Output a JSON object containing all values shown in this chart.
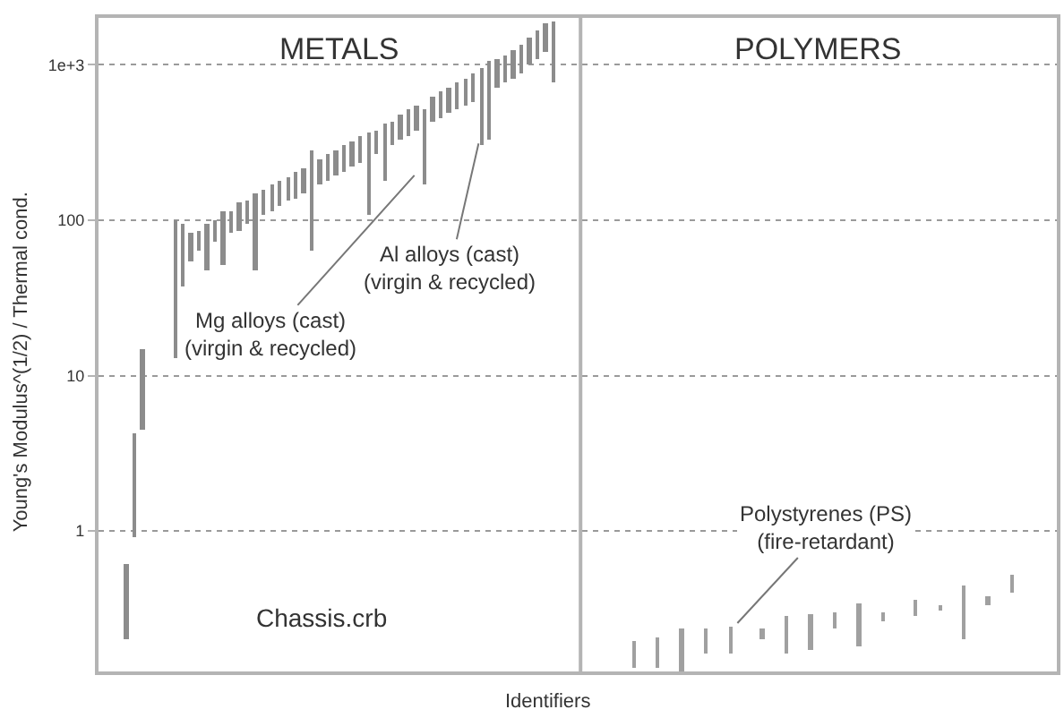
{
  "chart_data": {
    "type": "bar",
    "xlabel": "Identifiers",
    "ylabel": "Young's Modulus^(1/2) / Thermal cond.",
    "categories": [
      null,
      null,
      null,
      null,
      null,
      null,
      null,
      null,
      null,
      null,
      null,
      null,
      null,
      null,
      null,
      null,
      null,
      null,
      null,
      null,
      null,
      null,
      null,
      null,
      null,
      null,
      null,
      null,
      null,
      null,
      null,
      null,
      null,
      null,
      null,
      null,
      null,
      null,
      null,
      null,
      null,
      null,
      null,
      null,
      null,
      null,
      null,
      null,
      null,
      null,
      null,
      null,
      null,
      null,
      null,
      null,
      null,
      null,
      null,
      null,
      null,
      null,
      null,
      null,
      null,
      null,
      null,
      null,
      null,
      null,
      null,
      null,
      null,
      null,
      null,
      null,
      null,
      null,
      null,
      null,
      null,
      null,
      null,
      null,
      null,
      null,
      null,
      null,
      null,
      null,
      null,
      null,
      null,
      null,
      null,
      null,
      null,
      null,
      null,
      null,
      null,
      null,
      null,
      null,
      null,
      null,
      null,
      null,
      null,
      null,
      null,
      null,
      null,
      null,
      null,
      null,
      null,
      null,
      null
    ],
    "base": [
      null,
      null,
      null,
      0.2,
      0.91,
      4.5,
      null,
      null,
      null,
      12.9,
      37,
      55,
      63,
      48,
      72,
      51,
      82,
      86,
      94,
      48,
      107,
      113,
      122,
      132,
      139,
      147,
      63,
      172,
      181,
      196,
      207,
      224,
      236,
      107,
      270,
      181,
      308,
      333,
      352,
      381,
      172,
      434,
      458,
      496,
      523,
      551,
      581,
      308,
      333,
      718,
      778,
      820,
      888,
      1010,
      1100,
      1220,
      778,
      null,
      null,
      null,
      null,
      null,
      null,
      null,
      null,
      null,
      0.132,
      null,
      null,
      0.132,
      null,
      null,
      0.125,
      null,
      null,
      0.163,
      null,
      null,
      0.163,
      null,
      null,
      null,
      0.202,
      null,
      null,
      0.163,
      null,
      null,
      0.172,
      null,
      null,
      0.236,
      null,
      null,
      0.181,
      null,
      null,
      0.263,
      null,
      null,
      null,
      0.284,
      null,
      null,
      0.308,
      null,
      null,
      0.202,
      null,
      null,
      0.333,
      null,
      null,
      0.401,
      null,
      null,
      null,
      null,
      null
    ],
    "values": [
      null,
      null,
      null,
      0.41,
      3.3,
      10.2,
      null,
      null,
      null,
      86,
      57,
      27,
      23,
      46,
      29,
      62,
      31,
      43,
      38,
      99,
      48,
      55,
      59,
      59,
      68,
      71,
      221,
      77,
      82,
      88,
      101,
      101,
      116,
      264,
      111,
      242,
      126,
      150,
      171,
      170,
      351,
      195,
      223,
      222,
      255,
      269,
      307,
      653,
      736,
      379,
      382,
      433,
      467,
      500,
      575,
      640,
      1130,
      null,
      null,
      null,
      null,
      null,
      null,
      null,
      null,
      null,
      0.064,
      null,
      null,
      0.075,
      null,
      null,
      0.111,
      null,
      null,
      0.073,
      null,
      null,
      0.08,
      null,
      null,
      null,
      0.034,
      null,
      null,
      0.121,
      null,
      null,
      0.12,
      null,
      null,
      0.064,
      null,
      null,
      0.161,
      null,
      null,
      0.037,
      null,
      null,
      null,
      0.077,
      null,
      null,
      0.025,
      null,
      null,
      0.244,
      null,
      null,
      0.048,
      null,
      null,
      0.122,
      null,
      null,
      null,
      null,
      null
    ],
    "colors": [
      null,
      null,
      null,
      "#8c8c8c",
      "#8c8c8c",
      "#8c8c8c",
      null,
      null,
      null,
      "#8c8c8c",
      "#8c8c8c",
      "#8c8c8c",
      "#8c8c8c",
      "#8c8c8c",
      "#8c8c8c",
      "#8c8c8c",
      "#8c8c8c",
      "#8c8c8c",
      "#8c8c8c",
      "#8c8c8c",
      "#8c8c8c",
      "#8c8c8c",
      "#8c8c8c",
      "#8c8c8c",
      "#8c8c8c",
      "#8c8c8c",
      "#8c8c8c",
      "#8c8c8c",
      "#8c8c8c",
      "#8c8c8c",
      "#8c8c8c",
      "#8c8c8c",
      "#8c8c8c",
      "#8c8c8c",
      "#8c8c8c",
      "#8c8c8c",
      "#8c8c8c",
      "#8c8c8c",
      "#8c8c8c",
      "#8c8c8c",
      "#8c8c8c",
      "#8c8c8c",
      "#8c8c8c",
      "#8c8c8c",
      "#8c8c8c",
      "#8c8c8c",
      "#8c8c8c",
      "#8c8c8c",
      "#8c8c8c",
      "#8c8c8c",
      "#8c8c8c",
      "#8c8c8c",
      "#8c8c8c",
      "#8c8c8c",
      "#8c8c8c",
      "#8c8c8c",
      "#8c8c8c",
      null,
      null,
      null,
      null,
      null,
      null,
      null,
      null,
      null,
      "#a0a0a0",
      null,
      null,
      "#a0a0a0",
      null,
      null,
      "#a0a0a0",
      null,
      null,
      "#a0a0a0",
      null,
      null,
      "#a0a0a0",
      null,
      null,
      null,
      "#a0a0a0",
      null,
      null,
      "#a0a0a0",
      null,
      null,
      "#a0a0a0",
      null,
      null,
      "#a0a0a0",
      null,
      null,
      "#a0a0a0",
      null,
      null,
      "#a0a0a0",
      null,
      null,
      null,
      "#a0a0a0",
      null,
      null,
      "#a0a0a0",
      null,
      null,
      "#a0a0a0",
      null,
      null,
      "#a0a0a0",
      null,
      null,
      "#a0a0a0",
      null,
      null,
      null,
      null,
      null
    ],
    "log": true,
    "ylim": [
      0.125,
      2000
    ],
    "yticks": [
      1,
      10,
      100,
      {
        "value": 1000,
        "label": "1e+3"
      }
    ],
    "grid": "y",
    "tick_labels": "y",
    "annotations": [
      "METALS",
      "POLYMERS",
      "Mg alloys (cast)\n(virgin & recycled)",
      "Al alloys (cast)\n(virgin & recycled)",
      "Chassis.crb",
      "Polystyrenes (PS)\n(fire-retardant)"
    ]
  }
}
